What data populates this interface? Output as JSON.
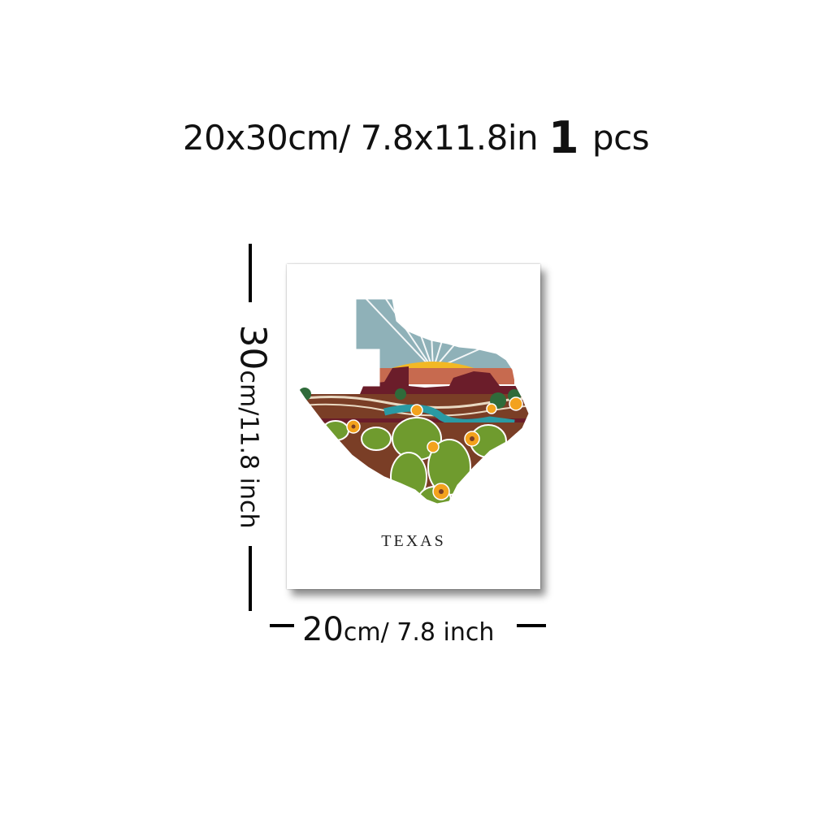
{
  "headline": {
    "size_cm": "20x30cm/",
    "size_in": " 7.8x11.8in",
    "count": "1",
    "unit": " pcs"
  },
  "poster": {
    "title": "TEXAS",
    "colors": {
      "sky": "#8fb1b8",
      "sun": "#f2b825",
      "mesa": "#6b1d2a",
      "terracotta": "#c76a4f",
      "river": "#2a9aa3",
      "soil": "#7a3e26",
      "cactus": "#6f9b2e",
      "bush": "#2f6b3a",
      "flower": "#f3a21d"
    }
  },
  "height_label": {
    "number": "30",
    "unit": "cm/11.8 inch"
  },
  "width_label": {
    "number": "20",
    "unit": "cm/ 7.8 inch"
  }
}
